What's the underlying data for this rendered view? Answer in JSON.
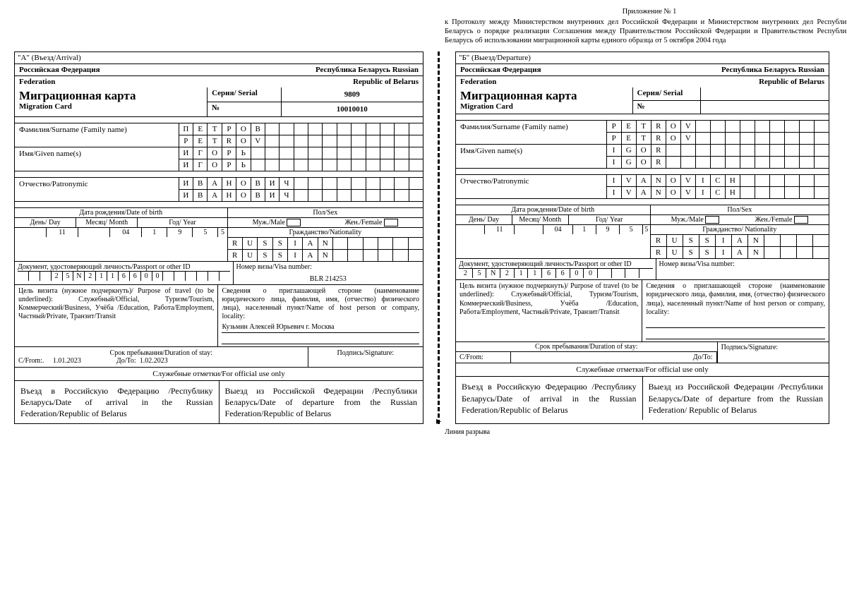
{
  "annex_title": "Приложение № 1",
  "annex_text": "к Протоколу между Министерством внутренних дел Российской Федерации и Министерством внутренних дел Республики Беларусь о порядке реализации Соглашения между Правительством Российской Федерации и Правительством Республики Беларусь об использовании миграционной карты единого образца от 5 октября 2004 года",
  "card_a": {
    "section": "\"А\" (Въезд/Arrival)",
    "country1_ru": "Российская Федерация",
    "country2_ru": "Республика Беларусь Russian",
    "country1_en": "Federation",
    "country2_en": "Republic of Belarus",
    "title_ru": "Миграционная карта",
    "title_en": "Migration Card",
    "serial_lbl": "Серия/ Serial",
    "serial_val": "9809",
    "num_lbl": "№",
    "num_val": "10010010",
    "surname_lbl": "Фамилия/Surname      (Family name)",
    "surname_ru": "ПЕТРОВ",
    "surname_en": "PETROV",
    "given_lbl": "Имя/Given name(s)",
    "given_ru": "ИГОРЬ",
    "given_en": "ИГОРЬ",
    "patr_lbl": "Отчество/Patronymic",
    "patr_ru": "ИВАНОВИЧ",
    "patr_en": "ИВАНОВИЧ",
    "dob_hdr": "Дата рождения/Date of birth",
    "day_lbl": "День/ Day",
    "month_lbl": "Месяц/ Month",
    "year_lbl": "Год/ Year",
    "sex_hdr": "Пол/Sex",
    "male_lbl": "Муж./Male",
    "female_lbl": "Жен./Female",
    "nat_hdr": "Гражданство/Nationality",
    "day_val": "11",
    "month_val": "04",
    "year_val": "1955",
    "nat_ru": "RUSSIAN",
    "nat_en": "RUSSIAN",
    "doc_lbl": "Документ, удостоверяющий личность/Passport or other ID",
    "visa_lbl": "Номер визы/Visa number:",
    "doc_val": "25N2116600",
    "visa_val": "BLR 214253",
    "purpose_lbl": "Цель визита (нужное подчеркнуть)/ Purpose of travel (to be underlined): Служебный/Official, Туризм/Tourism, Коммерческий/Business, Учёба /Education, Работа/Employment, Частный/Private, Транзит/Transit",
    "host_lbl": "Сведения о приглашающей стороне (наименование юридического лица, фамилия, имя, (отчество) физического лица), населенный пункт/Name of host person or company, locality:",
    "host_val": "Кузьмин     Алексей     Юрьевич     г. Москва",
    "stay_hdr": "Срок пребывания/Duration of stay:",
    "from_lbl": "С/From:.",
    "from_val": "1.01.2023",
    "to_lbl": "До/To:",
    "to_val": "1.02.2023",
    "sign_lbl": "Подпись/Signature:",
    "official_hdr": "Служебные отметки/For official use only",
    "arrival_txt": "Въезд в Российскую Федерацию /Республику Беларусь/Date of arrival in the Russian Federation/Republic of Belarus",
    "departure_txt": "Выезд из Российской Федерации /Республики Беларусь/Date of departure from the Russian Federation/Republic of Belarus"
  },
  "card_b": {
    "section": "\"Б\" (Выезд/Departure)",
    "country1_ru": "Российская Федерация",
    "country2_ru": "Республика Беларусь Russian",
    "country1_en": "Federation",
    "country2_en": "Republic of Belarus",
    "title_ru": "Миграционная карта",
    "title_en": "Migration Card",
    "serial_lbl": "Серия/ Serial",
    "num_lbl": "№",
    "surname_lbl": "Фамилия/Surname (Family name)",
    "surname_ru": "PETROV",
    "surname_en": "PETROV",
    "given_lbl": "Имя/Given name(s)",
    "given_ru": "IGOR",
    "given_en": "IGOR",
    "patr_lbl": "Отчество/Patronymic",
    "patr_ru": "IVANOVICH",
    "patr_en": "IVANOVICH",
    "dob_hdr": "Дата рождения/Date of birth",
    "day_lbl": "День/ Day",
    "month_lbl": "Месяц/ Month",
    "year_lbl": "Год/ Year",
    "sex_hdr": "Пол/Sex",
    "male_lbl": "Муж./Male",
    "female_lbl": "Жен./Female",
    "nat_hdr": "Гражданство/ Nationality",
    "day_val": "11",
    "month_val": "04",
    "year_val": "1955",
    "nat_ru": "RUSSIAN",
    "nat_en": "RUSSIAN",
    "doc_lbl": "Документ, удостоверяющий личность/Passport or other ID",
    "visa_lbl": "Номер визы/Visa number:",
    "doc_val": "25N2116600",
    "purpose_lbl": "Цель визита (нужное подчеркнуть)/ Purpose of travel (to be underlined): Служебный/Official, Туризм/Tourism, Коммерческий/Business, Учёба /Education, Работа/Employment, Частный/Private, Транзит/Transit",
    "host_lbl": "Сведения о приглашающей стороне (наименование юридического лица, фамилия, имя, (отчество) физического лица), населенный пункт/Name of host person or company, locality:",
    "stay_hdr": "Срок пребывания/Duration of stay:",
    "from_lbl": "С/From:",
    "to_lbl": "До/To:",
    "sign_lbl": "Подпись/Signature:",
    "official_hdr": "Служебные отметки/For official use only",
    "arrival_txt": "Въезд в Российскую Федерацию /Республику Беларусь/Date of arrival in the Russian Federation/Republic of Belarus",
    "departure_txt": "Выезд из Российской Федерации /Республики Беларусь/Date of departure from the Russian Federation/ Republic of Belarus"
  },
  "tear_line": "Линия разрыва"
}
